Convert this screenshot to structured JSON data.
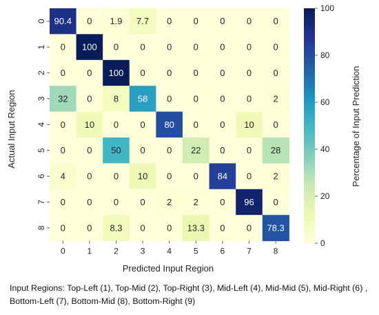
{
  "chart_data": {
    "type": "heatmap",
    "xlabel": "Predicted Input Region",
    "ylabel": "Actual Input Region",
    "colorbar_label": "Percentage of Input Prediction",
    "x_categories": [
      "0",
      "1",
      "2",
      "3",
      "4",
      "5",
      "6",
      "7",
      "8"
    ],
    "y_categories": [
      "0",
      "1",
      "2",
      "3",
      "4",
      "5",
      "6",
      "7",
      "8"
    ],
    "values": [
      [
        90.4,
        0,
        1.9,
        7.7,
        0,
        0,
        0,
        0,
        0
      ],
      [
        0,
        100,
        0,
        0,
        0,
        0,
        0,
        0,
        0
      ],
      [
        0,
        0,
        100,
        0,
        0,
        0,
        0,
        0,
        0
      ],
      [
        32,
        0,
        8,
        58,
        0,
        0,
        0,
        0,
        2
      ],
      [
        0,
        10,
        0,
        0,
        80,
        0,
        0,
        10,
        0
      ],
      [
        0,
        0,
        50,
        0,
        0,
        22,
        0,
        0,
        28
      ],
      [
        4,
        0,
        0,
        10,
        0,
        0,
        84,
        0,
        2
      ],
      [
        0,
        0,
        0,
        0,
        2,
        2,
        0,
        96,
        0
      ],
      [
        0,
        0,
        8.3,
        0,
        0,
        13.3,
        0,
        0,
        78.3
      ]
    ],
    "color_range": [
      0,
      100
    ],
    "colorbar_ticks": [
      0,
      20,
      40,
      60,
      80,
      100
    ],
    "colormap": "YlGnBu",
    "colormap_stops": [
      "#ffffd9",
      "#edf8b1",
      "#c7e9b4",
      "#7fcdbb",
      "#41b6c4",
      "#1d91c0",
      "#225ea8",
      "#253494",
      "#081d58"
    ]
  },
  "caption": "Input Regions: Top-Left (1), Top-Mid (2), Top-Right (3), Mid-Left (4), Mid-Mid (5), Mid-Right (6) , Bottom-Left (7), Bottom-Mid (8), Bottom-Right (9)"
}
